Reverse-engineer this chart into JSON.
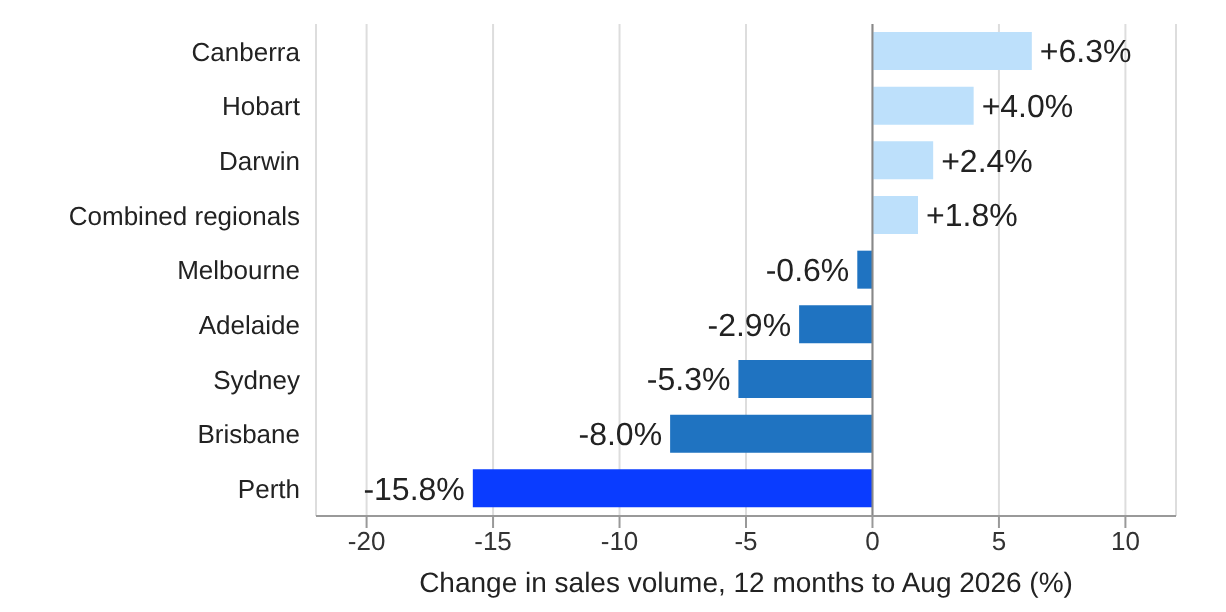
{
  "chart_data": {
    "type": "bar",
    "orientation": "horizontal",
    "xlabel": "Change in sales volume, 12 months to Aug 2026 (%)",
    "categories": [
      "Canberra",
      "Hobart",
      "Darwin",
      "Combined regionals",
      "Melbourne",
      "Adelaide",
      "Sydney",
      "Brisbane",
      "Perth"
    ],
    "values": [
      6.3,
      4.0,
      2.4,
      1.8,
      -0.6,
      -2.9,
      -5.3,
      -8.0,
      -15.8
    ],
    "colors": [
      "#bde0fb",
      "#bde0fb",
      "#bde0fb",
      "#bde0fb",
      "#1f73c1",
      "#1f73c1",
      "#1f73c1",
      "#1f73c1",
      "#0a3cff"
    ],
    "value_labels": [
      "+6.3%",
      "+4.0%",
      "+2.4%",
      "+1.8%",
      "-0.6%",
      "-2.9%",
      "-5.3%",
      "-8.0%",
      "-15.8%"
    ],
    "xlim": [
      -22,
      12
    ],
    "xticks": [
      -20,
      -15,
      -10,
      -5,
      0,
      5,
      10
    ],
    "grid": "x"
  }
}
